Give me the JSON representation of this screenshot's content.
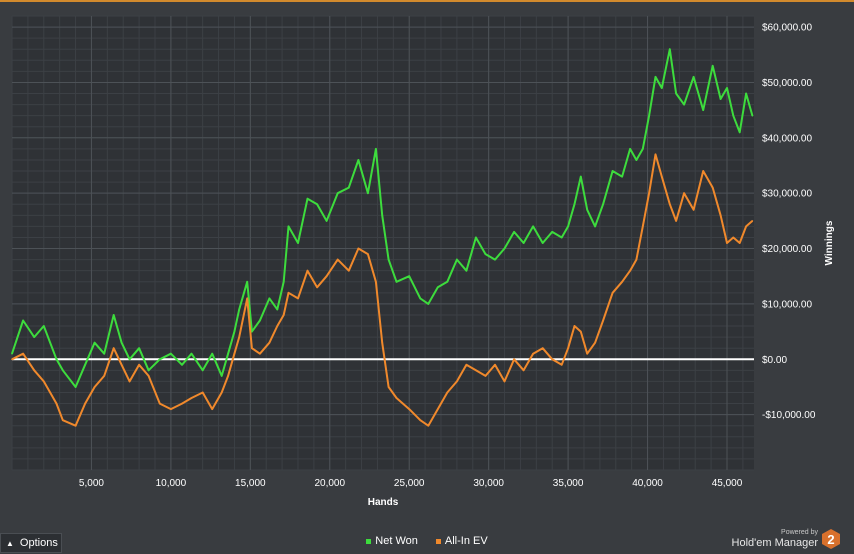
{
  "chart_data": {
    "type": "line",
    "xlabel": "Hands",
    "ylabel": "Winnings",
    "xlim": [
      0,
      46700
    ],
    "ylim": [
      -20000,
      62000
    ],
    "x_ticks": [
      5000,
      10000,
      15000,
      20000,
      25000,
      30000,
      35000,
      40000,
      45000
    ],
    "x_tick_labels": [
      "5,000",
      "10,000",
      "15,000",
      "20,000",
      "25,000",
      "30,000",
      "35,000",
      "40,000",
      "45,000"
    ],
    "y_ticks": [
      60000,
      50000,
      40000,
      30000,
      20000,
      10000,
      0,
      -10000
    ],
    "y_tick_labels": [
      "$60,000.00",
      "$50,000.00",
      "$40,000.00",
      "$30,000.00",
      "$20,000.00",
      "$10,000.00",
      "$0.00",
      "-$10,000.00"
    ],
    "grid": true,
    "zero_line": true,
    "legend_position": "bottom-center",
    "series": [
      {
        "name": "Net Won",
        "color": "#3ddc3d",
        "x": [
          0,
          700,
          1400,
          2000,
          2800,
          3200,
          4000,
          4600,
          5200,
          5800,
          6400,
          6900,
          7400,
          8000,
          8600,
          9300,
          10000,
          10700,
          11300,
          12000,
          12600,
          13200,
          13600,
          14000,
          14300,
          14800,
          15100,
          15600,
          16200,
          16700,
          17100,
          17400,
          18000,
          18600,
          19200,
          19800,
          20500,
          21200,
          21800,
          22400,
          22900,
          23300,
          23700,
          24200,
          25000,
          25700,
          26200,
          26800,
          27400,
          28000,
          28600,
          29200,
          29800,
          30400,
          31000,
          31600,
          32200,
          32800,
          33400,
          34000,
          34600,
          35000,
          35400,
          35800,
          36200,
          36700,
          37200,
          37800,
          38400,
          38900,
          39300,
          39700,
          40100,
          40500,
          40900,
          41400,
          41800,
          42300,
          42900,
          43500,
          44100,
          44600,
          45000,
          45400,
          45800,
          46200,
          46600
        ],
        "y": [
          1000,
          7000,
          4000,
          6000,
          0,
          -2000,
          -5000,
          -1000,
          3000,
          1000,
          8000,
          3000,
          0,
          2000,
          -2000,
          0,
          1000,
          -1000,
          1000,
          -2000,
          1000,
          -3000,
          1000,
          5000,
          9000,
          14000,
          5000,
          7000,
          11000,
          9000,
          14000,
          24000,
          21000,
          29000,
          28000,
          25000,
          30000,
          31000,
          36000,
          30000,
          38000,
          26000,
          18000,
          14000,
          15000,
          11000,
          10000,
          13000,
          14000,
          18000,
          16000,
          22000,
          19000,
          18000,
          20000,
          23000,
          21000,
          24000,
          21000,
          23000,
          22000,
          24000,
          28000,
          33000,
          27000,
          24000,
          28000,
          34000,
          33000,
          38000,
          36000,
          38000,
          44000,
          51000,
          49000,
          56000,
          48000,
          46000,
          51000,
          45000,
          53000,
          47000,
          49000,
          44000,
          41000,
          48000,
          44000
        ]
      },
      {
        "name": "All-In EV",
        "color": "#f0892c",
        "x": [
          0,
          700,
          1400,
          2000,
          2800,
          3200,
          4000,
          4600,
          5200,
          5800,
          6400,
          6900,
          7400,
          8000,
          8600,
          9300,
          10000,
          10700,
          11300,
          12000,
          12600,
          13200,
          13600,
          14000,
          14300,
          14800,
          15100,
          15600,
          16200,
          16700,
          17100,
          17400,
          18000,
          18600,
          19200,
          19800,
          20500,
          21200,
          21800,
          22400,
          22900,
          23300,
          23700,
          24200,
          25000,
          25700,
          26200,
          26800,
          27400,
          28000,
          28600,
          29200,
          29800,
          30400,
          31000,
          31600,
          32200,
          32800,
          33400,
          34000,
          34600,
          35000,
          35400,
          35800,
          36200,
          36700,
          37200,
          37800,
          38400,
          38900,
          39300,
          39700,
          40100,
          40500,
          40900,
          41400,
          41800,
          42300,
          42900,
          43500,
          44100,
          44600,
          45000,
          45400,
          45800,
          46200,
          46600
        ],
        "y": [
          0,
          1000,
          -2000,
          -4000,
          -8000,
          -11000,
          -12000,
          -8000,
          -5000,
          -3000,
          2000,
          -1000,
          -4000,
          -1000,
          -3000,
          -8000,
          -9000,
          -8000,
          -7000,
          -6000,
          -9000,
          -6000,
          -3000,
          1000,
          4000,
          11000,
          2000,
          1000,
          3000,
          6000,
          8000,
          12000,
          11000,
          16000,
          13000,
          15000,
          18000,
          16000,
          20000,
          19000,
          14000,
          3000,
          -5000,
          -7000,
          -9000,
          -11000,
          -12000,
          -9000,
          -6000,
          -4000,
          -1000,
          -2000,
          -3000,
          -1000,
          -4000,
          0,
          -2000,
          1000,
          2000,
          0,
          -1000,
          2000,
          6000,
          5000,
          1000,
          3000,
          7000,
          12000,
          14000,
          16000,
          18000,
          24000,
          30000,
          37000,
          33000,
          28000,
          25000,
          30000,
          27000,
          34000,
          31000,
          26000,
          21000,
          22000,
          21000,
          24000,
          25000
        ]
      }
    ]
  },
  "options": {
    "label": "Options",
    "icon": "caret-up-icon"
  },
  "brand": {
    "powered_label": "Powered by",
    "name": "Hold'em Manager",
    "badge": "2"
  }
}
